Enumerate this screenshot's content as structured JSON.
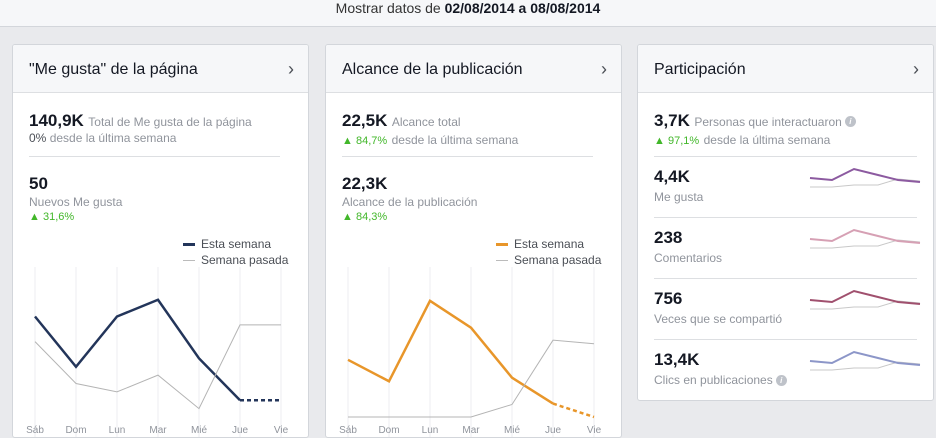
{
  "header": {
    "prefix": "Mostrar datos de ",
    "range_start": "02/08/2014",
    "range_sep": " a ",
    "range_end": "08/08/2014"
  },
  "days": [
    "Sáb",
    "Dom",
    "Lun",
    "Mar",
    "Mié",
    "Jue",
    "Vie"
  ],
  "legend": {
    "this_week": "Esta semana",
    "last_week": "Semana pasada"
  },
  "cards": {
    "likes": {
      "title": "\"Me gusta\" de la página",
      "total": "140,9K",
      "total_label": "Total de Me gusta de la página",
      "change": "0%",
      "change_label": "desde la última semana",
      "new": "50",
      "new_label": "Nuevos Me gusta",
      "new_change": "31,6%",
      "color": "#23355a",
      "chart_data": {
        "type": "line",
        "x": [
          "Sáb",
          "Dom",
          "Lun",
          "Mar",
          "Mié",
          "Jue",
          "Vie"
        ],
        "series": [
          {
            "name": "Esta semana",
            "values": [
              100,
              40,
              100,
              120,
              50,
              0,
              0
            ]
          },
          {
            "name": "Semana pasada",
            "values": [
              70,
              20,
              10,
              30,
              -10,
              90,
              90
            ]
          }
        ]
      }
    },
    "reach": {
      "title": "Alcance de la publicación",
      "total": "22,5K",
      "total_label": "Alcance total",
      "change": "84,7%",
      "change_label": "desde la última semana",
      "post": "22,3K",
      "post_label": "Alcance de la publicación",
      "post_change": "84,3%",
      "color": "#e8962a",
      "chart_data": {
        "type": "line",
        "x": [
          "Sáb",
          "Dom",
          "Lun",
          "Mar",
          "Mié",
          "Jue",
          "Vie"
        ],
        "series": [
          {
            "name": "Esta semana",
            "values": [
              6400,
              4000,
              13000,
              10000,
              4400,
              1500,
              0
            ]
          },
          {
            "name": "Semana pasada",
            "values": [
              0,
              0,
              0,
              0,
              1400,
              8600,
              8200
            ]
          }
        ]
      }
    },
    "engagement": {
      "title": "Participación",
      "total": "3,7K",
      "total_label": "Personas que interactuaron",
      "change": "97,1%",
      "change_label": "desde la última semana",
      "items": [
        {
          "value": "4,4K",
          "label": "Me gusta",
          "color": "#8c5aa0"
        },
        {
          "value": "238",
          "label": "Comentarios",
          "color": "#d6a0b4"
        },
        {
          "value": "756",
          "label": "Veces que se compartió",
          "color": "#a0506e"
        },
        {
          "value": "13,4K",
          "label": "Clics en publicaciones",
          "color": "#8c96c8"
        }
      ]
    }
  }
}
